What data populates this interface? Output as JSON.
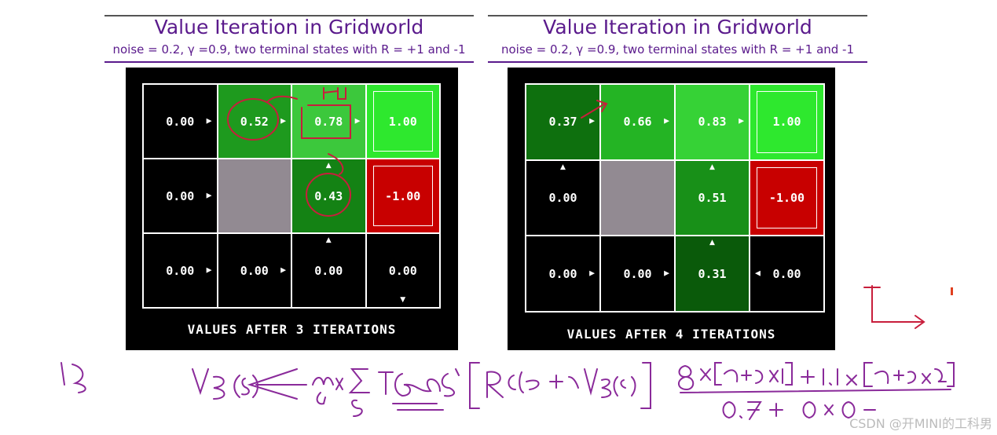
{
  "panels": [
    {
      "title": "Value Iteration in Gridworld",
      "subtitle": "noise = 0.2, γ =0.9, two terminal states with R = +1 and -1",
      "caption": "VALUES AFTER 3 ITERATIONS",
      "cells": [
        {
          "value": "0.00",
          "bg": "#000000",
          "arrow": "right"
        },
        {
          "value": "0.52",
          "bg": "#1e9a1e",
          "arrow": "right"
        },
        {
          "value": "0.78",
          "bg": "#3cc83c",
          "arrow": "right"
        },
        {
          "value": "1.00",
          "bg": "#2ee82e",
          "terminal": true
        },
        {
          "value": "0.00",
          "bg": "#000000",
          "arrow": "right"
        },
        {
          "value": "",
          "bg": "#928a92",
          "wall": true
        },
        {
          "value": "0.43",
          "bg": "#148214",
          "arrow": "up"
        },
        {
          "value": "-1.00",
          "bg": "#c80000",
          "terminal": true
        },
        {
          "value": "0.00",
          "bg": "#000000",
          "arrow": "right"
        },
        {
          "value": "0.00",
          "bg": "#000000",
          "arrow": "right"
        },
        {
          "value": "0.00",
          "bg": "#000000",
          "arrow": "up"
        },
        {
          "value": "0.00",
          "bg": "#000000",
          "arrow": "down"
        }
      ]
    },
    {
      "title": "Value Iteration in Gridworld",
      "subtitle": "noise = 0.2, γ =0.9, two terminal states with R = +1 and -1",
      "caption": "VALUES AFTER 4 ITERATIONS",
      "cells": [
        {
          "value": "0.37",
          "bg": "#0e700e",
          "arrow": "right"
        },
        {
          "value": "0.66",
          "bg": "#24b424",
          "arrow": "right"
        },
        {
          "value": "0.83",
          "bg": "#36d236",
          "arrow": "right"
        },
        {
          "value": "1.00",
          "bg": "#2ee82e",
          "terminal": true
        },
        {
          "value": "0.00",
          "bg": "#000000",
          "arrow": "up"
        },
        {
          "value": "",
          "bg": "#928a92",
          "wall": true
        },
        {
          "value": "0.51",
          "bg": "#189018",
          "arrow": "up"
        },
        {
          "value": "-1.00",
          "bg": "#c80000",
          "terminal": true
        },
        {
          "value": "0.00",
          "bg": "#000000",
          "arrow": "right"
        },
        {
          "value": "0.00",
          "bg": "#000000",
          "arrow": "right"
        },
        {
          "value": "0.31",
          "bg": "#0a5a0a",
          "arrow": "up"
        },
        {
          "value": "0.00",
          "bg": "#000000",
          "arrow": "left"
        }
      ]
    }
  ],
  "watermark": "CSDN @开MINI的工科男",
  "colors": {
    "title": "#5a1a8c",
    "ink_red": "#c81e3c",
    "ink_purple": "#8a2a9a"
  }
}
